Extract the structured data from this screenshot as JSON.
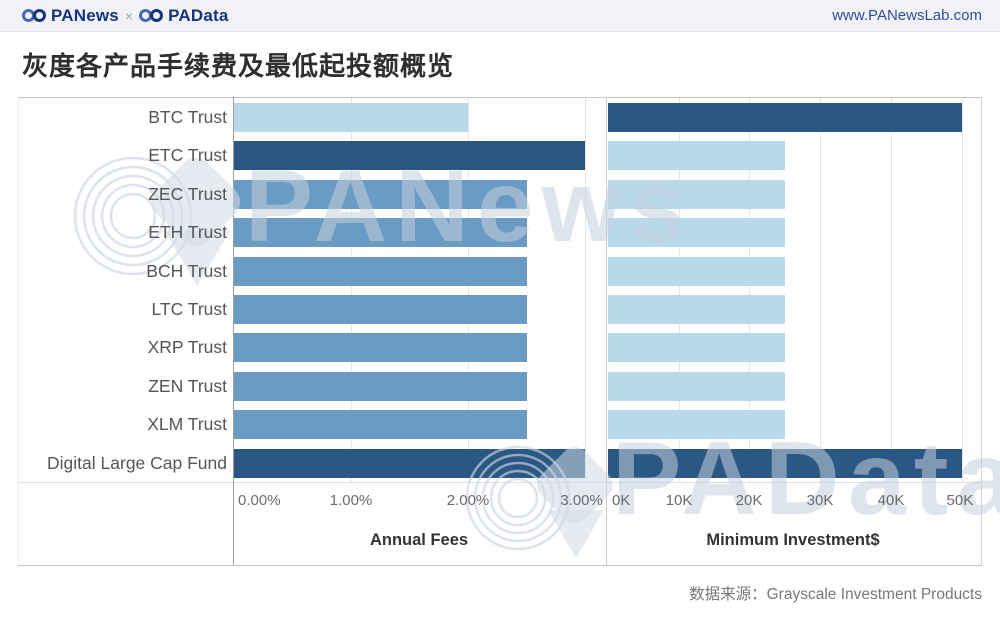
{
  "header": {
    "brand_left": "PANews",
    "separator": "×",
    "brand_right": "PAData",
    "website": "www.PANewsLab.com"
  },
  "title": "灰度各产品手续费及最低起投额概览",
  "source": "数据来源：Grayscale Investment Products",
  "watermarks": [
    "PANews",
    "PAData"
  ],
  "colors": {
    "light_blue": "#b8d9ea",
    "medium_blue": "#6a9bc4",
    "dark_blue": "#2a5783",
    "brand_navy": "#16337d",
    "brand_light": "#4a68b0"
  },
  "chart_data": [
    {
      "type": "bar",
      "orientation": "horizontal",
      "xlabel": "Annual Fees",
      "categories": [
        "BTC Trust",
        "ETC Trust",
        "ZEC Trust",
        "ETH Trust",
        "BCH Trust",
        "LTC Trust",
        "XRP Trust",
        "ZEN Trust",
        "XLM Trust",
        "Digital Large Cap Fund"
      ],
      "values": [
        2.0,
        3.0,
        2.5,
        2.5,
        2.5,
        2.5,
        2.5,
        2.5,
        2.5,
        3.0
      ],
      "unit": "%",
      "tick_labels": [
        "0.00%",
        "1.00%",
        "2.00%",
        "3.00%"
      ],
      "tick_values": [
        0,
        1,
        2,
        3
      ],
      "xlim": [
        0,
        3.17
      ],
      "grid": true,
      "bar_colors": [
        "light_blue",
        "dark_blue",
        "medium_blue",
        "medium_blue",
        "medium_blue",
        "medium_blue",
        "medium_blue",
        "medium_blue",
        "medium_blue",
        "dark_blue"
      ]
    },
    {
      "type": "bar",
      "orientation": "horizontal",
      "xlabel": "Minimum Investment$",
      "categories": [
        "BTC Trust",
        "ETC Trust",
        "ZEC Trust",
        "ETH Trust",
        "BCH Trust",
        "LTC Trust",
        "XRP Trust",
        "ZEN Trust",
        "XLM Trust",
        "Digital Large Cap Fund"
      ],
      "values": [
        50000,
        25000,
        25000,
        25000,
        25000,
        25000,
        25000,
        25000,
        25000,
        50000
      ],
      "unit": "$",
      "tick_labels": [
        "0K",
        "10K",
        "20K",
        "30K",
        "40K",
        "50K"
      ],
      "tick_values": [
        0,
        10000,
        20000,
        30000,
        40000,
        50000
      ],
      "xlim": [
        0,
        52300
      ],
      "grid": true,
      "bar_colors": [
        "dark_blue",
        "light_blue",
        "light_blue",
        "light_blue",
        "light_blue",
        "light_blue",
        "light_blue",
        "light_blue",
        "light_blue",
        "dark_blue"
      ]
    }
  ]
}
